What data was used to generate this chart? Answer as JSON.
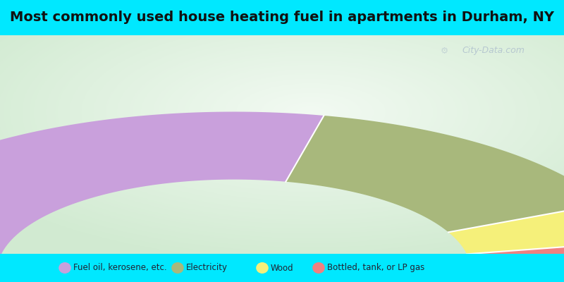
{
  "title": "Most commonly used house heating fuel in apartments in Durham, NY",
  "segments": [
    {
      "label": "Fuel oil, kerosene, etc.",
      "value": 57,
      "color": "#c9a0dc"
    },
    {
      "label": "Electricity",
      "value": 29,
      "color": "#a8b87c"
    },
    {
      "label": "Wood",
      "value": 8,
      "color": "#f5f07a"
    },
    {
      "label": "Bottled, tank, or LP gas",
      "value": 6,
      "color": "#f08080"
    }
  ],
  "legend_colors": [
    "#c9a0dc",
    "#a8b87c",
    "#f5f07a",
    "#f08080"
  ],
  "background_top": "#00e8ff",
  "title_fontsize": 14,
  "watermark": "City-Data.com"
}
